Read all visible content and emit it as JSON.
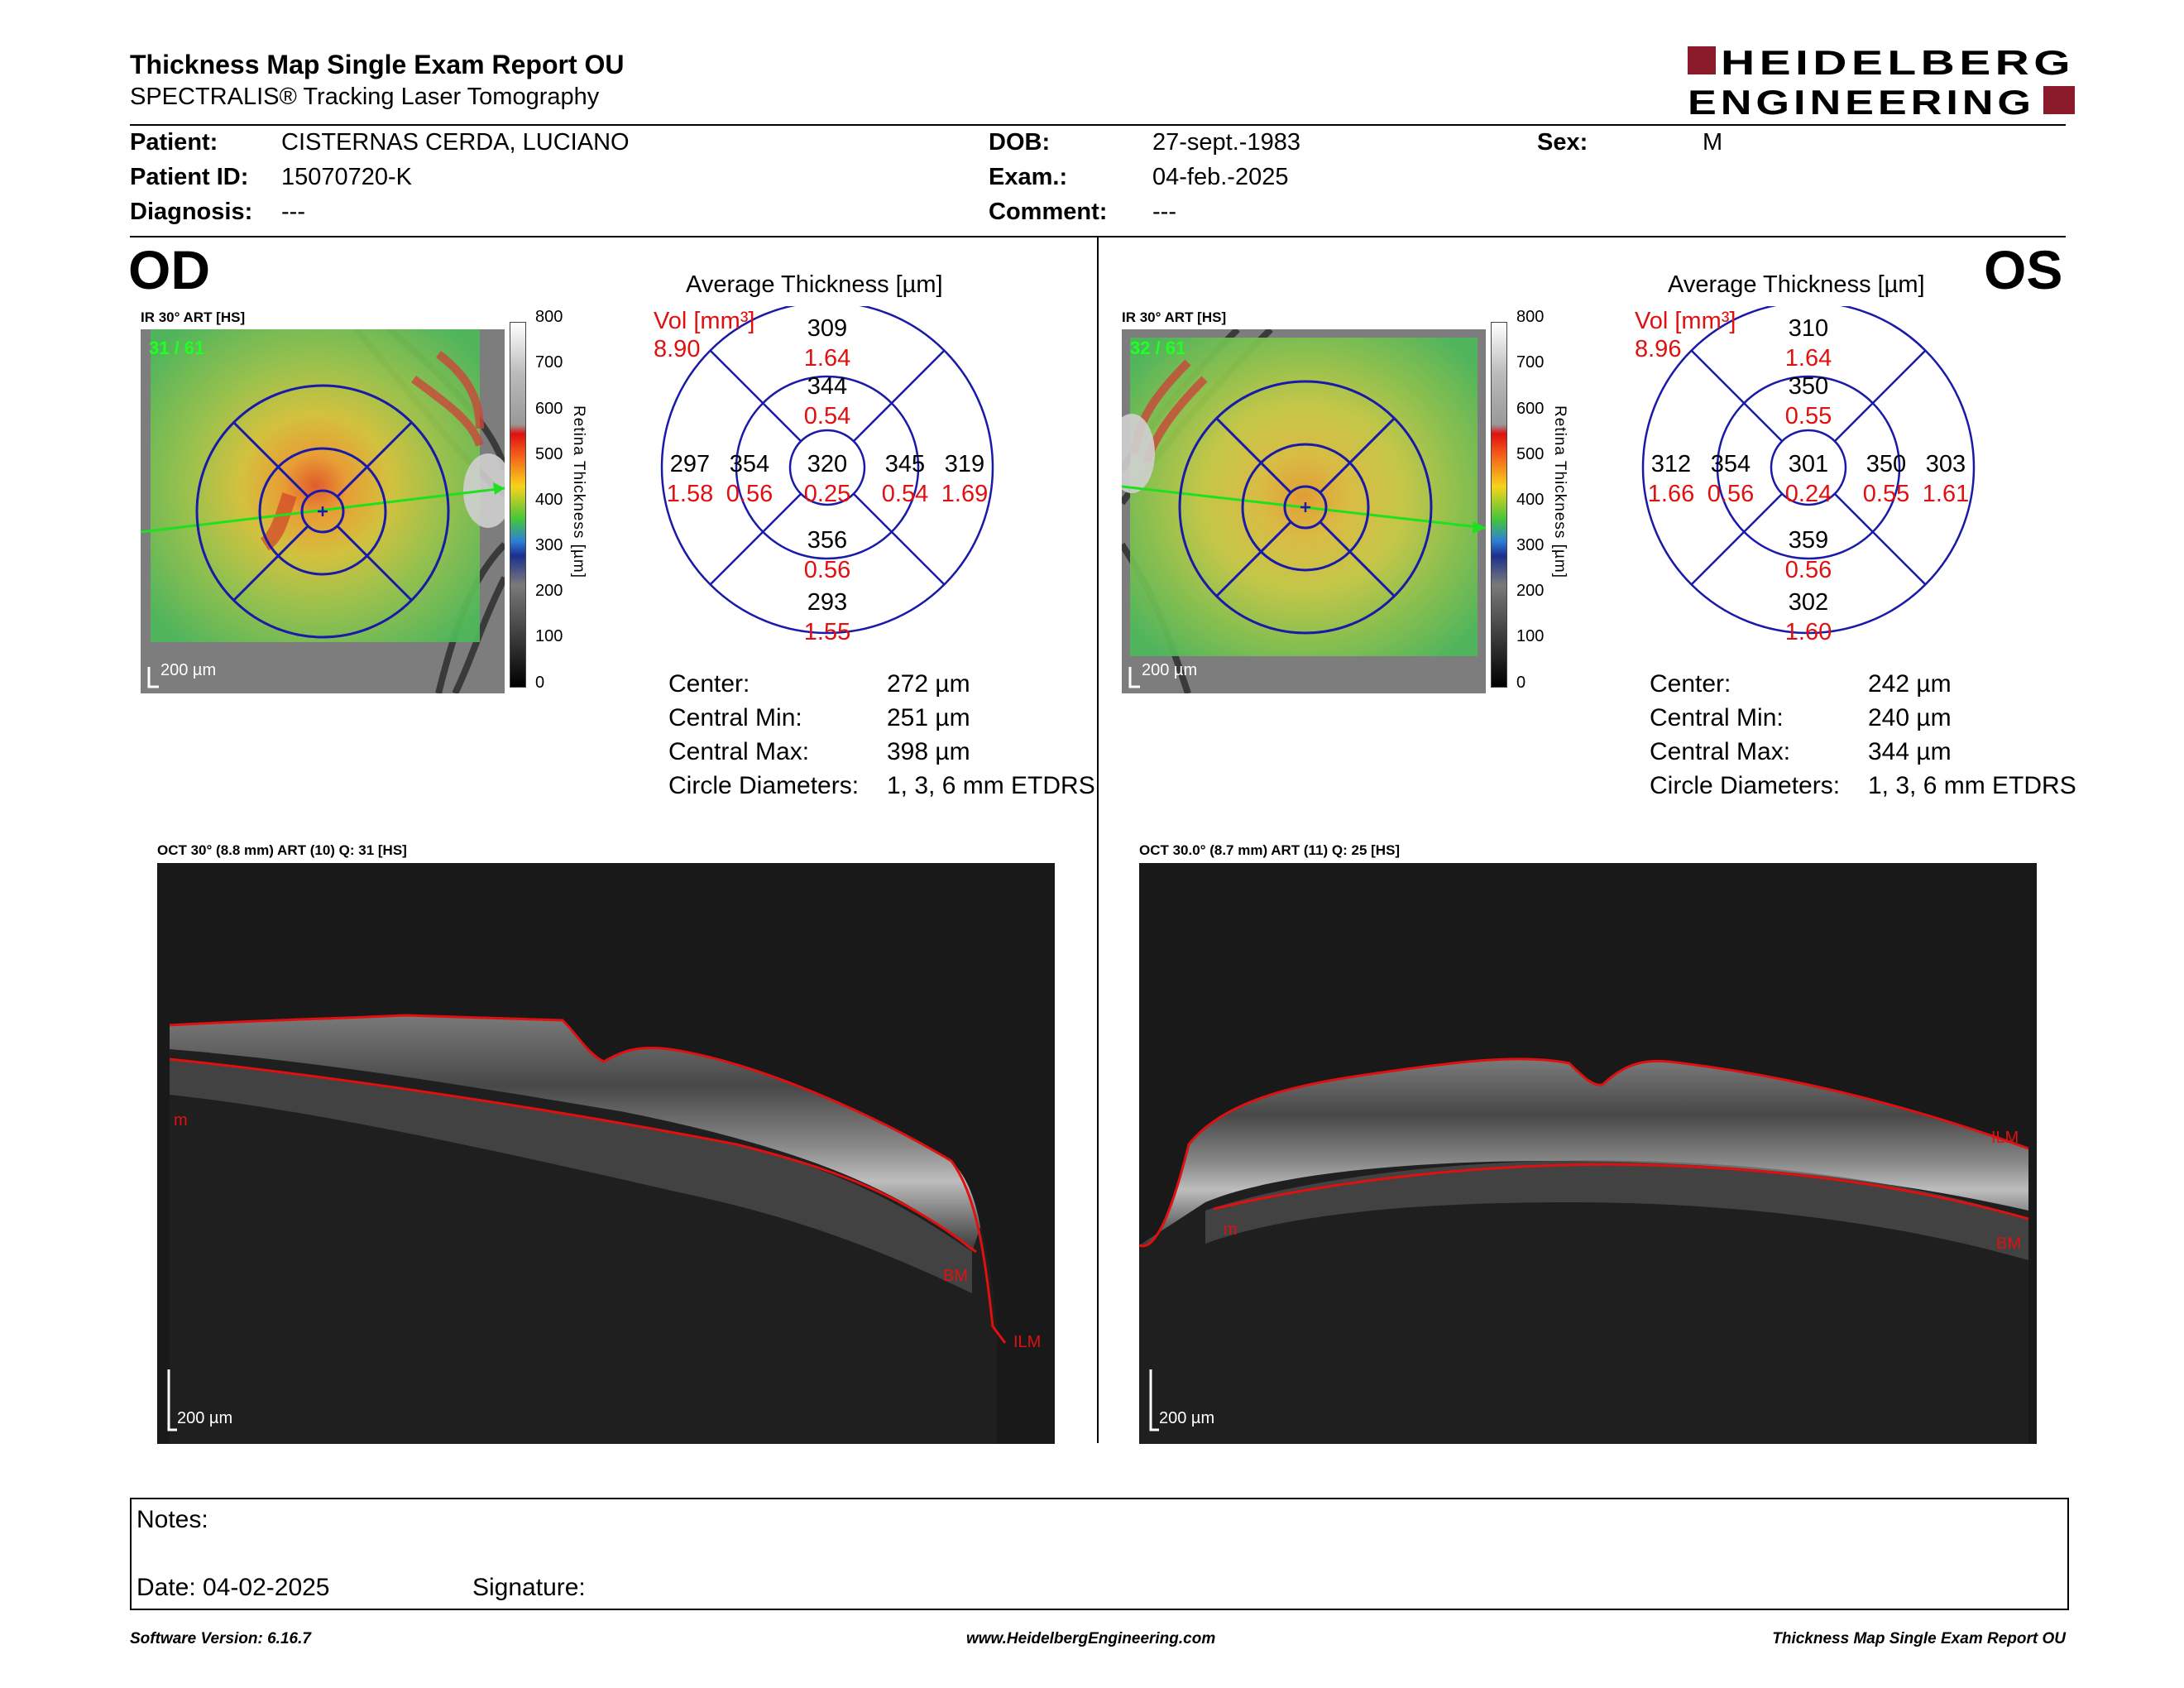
{
  "header": {
    "title": "Thickness Map Single Exam Report OU",
    "subtitle": "SPECTRALIS® Tracking Laser Tomography",
    "logo_top": "HEIDELBERG",
    "logo_bottom": "ENGINEERING",
    "logo_color": "#8b1a2b"
  },
  "patient": {
    "patient_label": "Patient:",
    "patient_value": "CISTERNAS CERDA, LUCIANO",
    "id_label": "Patient ID:",
    "id_value": "15070720-K",
    "diagnosis_label": "Diagnosis:",
    "diagnosis_value": "---",
    "dob_label": "DOB:",
    "dob_value": "27-sept.-1983",
    "exam_label": "Exam.:",
    "exam_value": "04-feb.-2025",
    "comment_label": "Comment:",
    "comment_value": "---",
    "sex_label": "Sex:",
    "sex_value": "M"
  },
  "colorbar": {
    "title": "Retina  Thickness [µm]",
    "ticks": [
      "800",
      "700",
      "600",
      "500",
      "400",
      "300",
      "200",
      "100",
      "0"
    ]
  },
  "od": {
    "eye": "OD",
    "ir_label": "IR 30° ART [HS]",
    "frame_label": "31 / 61",
    "scale_label": "200 µm",
    "avg_title": "Average Thickness [µm]",
    "vol_label": "Vol [mm³]",
    "vol_total": "8.90",
    "sectors": {
      "outer_sup": [
        "309",
        "1.64"
      ],
      "inner_sup": [
        "344",
        "0.54"
      ],
      "outer_temp": [
        "297",
        "1.58"
      ],
      "inner_temp": [
        "354",
        "0.56"
      ],
      "center": [
        "320",
        "0.25"
      ],
      "inner_nasal": [
        "345",
        "0.54"
      ],
      "outer_nasal": [
        "319",
        "1.69"
      ],
      "inner_inf": [
        "356",
        "0.56"
      ],
      "outer_inf": [
        "293",
        "1.55"
      ]
    },
    "stats": {
      "center_label": "Center:",
      "center_value": "272 µm",
      "min_label": "Central Min:",
      "min_value": "251 µm",
      "max_label": "Central Max:",
      "max_value": "398 µm",
      "diam_label": "Circle Diameters:",
      "diam_value": "1, 3, 6 mm ETDRS"
    },
    "oct_label": "OCT 30° (8.8 mm) ART (10) Q: 31 [HS]",
    "oct_scale": "200 µm",
    "layer_labels": [
      "m",
      "BM",
      "ILM"
    ]
  },
  "os": {
    "eye": "OS",
    "ir_label": "IR 30° ART [HS]",
    "frame_label": "32 / 61",
    "scale_label": "200 µm",
    "avg_title": "Average Thickness [µm]",
    "vol_label": "Vol [mm³]",
    "vol_total": "8.96",
    "sectors": {
      "outer_sup": [
        "310",
        "1.64"
      ],
      "inner_sup": [
        "350",
        "0.55"
      ],
      "outer_temp": [
        "312",
        "1.66"
      ],
      "inner_temp": [
        "354",
        "0.56"
      ],
      "center": [
        "301",
        "0.24"
      ],
      "inner_nasal": [
        "350",
        "0.55"
      ],
      "outer_nasal": [
        "303",
        "1.61"
      ],
      "inner_inf": [
        "359",
        "0.56"
      ],
      "outer_inf": [
        "302",
        "1.60"
      ]
    },
    "stats": {
      "center_label": "Center:",
      "center_value": "242 µm",
      "min_label": "Central Min:",
      "min_value": "240 µm",
      "max_label": "Central Max:",
      "max_value": "344 µm",
      "diam_label": "Circle Diameters:",
      "diam_value": "1, 3, 6 mm ETDRS"
    },
    "oct_label": "OCT 30.0° (8.7 mm) ART (11) Q: 25 [HS]",
    "oct_scale": "200 µm",
    "layer_labels": [
      "ILM",
      "m",
      "BM"
    ]
  },
  "notes": {
    "notes_label": "Notes:",
    "date_label": "Date: 04-02-2025",
    "signature_label": "Signature:"
  },
  "footer": {
    "software": "Software Version: 6.16.7",
    "website": "www.HeidelbergEngineering.com",
    "report": "Thickness Map Single Exam Report OU"
  }
}
